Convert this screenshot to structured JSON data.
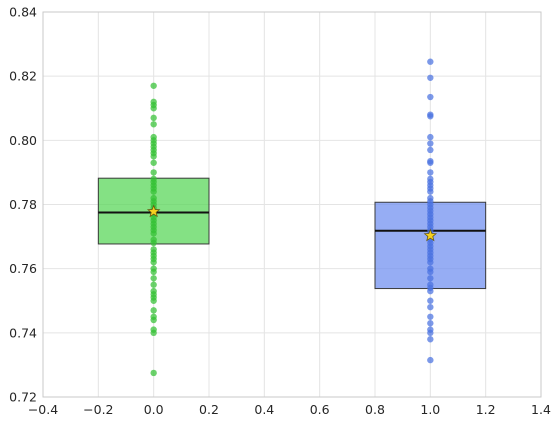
{
  "chart_data": {
    "type": "box",
    "xlim": [
      -0.4,
      1.4
    ],
    "ylim": [
      0.72,
      0.84
    ],
    "xticks": [
      -0.4,
      -0.2,
      0.0,
      0.2,
      0.4,
      0.6,
      0.8,
      1.0,
      1.2,
      1.4
    ],
    "yticks": [
      0.72,
      0.74,
      0.76,
      0.78,
      0.8,
      0.82,
      0.84
    ],
    "xtick_labels": [
      "−0.4",
      "−0.2",
      "0.0",
      "0.2",
      "0.4",
      "0.6",
      "0.8",
      "1.0",
      "1.2",
      "1.4"
    ],
    "ytick_labels": [
      "0.72",
      "0.74",
      "0.76",
      "0.78",
      "0.80",
      "0.82",
      "0.84"
    ],
    "grid": true,
    "series": [
      {
        "position": 0.0,
        "box_width": 0.4,
        "q1": 0.7677,
        "median": 0.7775,
        "q3": 0.7882,
        "mean": 0.7778,
        "box_color": "#55d655",
        "box_edge": "#3a3a3a",
        "point_color": "#33c033",
        "points": [
          0.817,
          0.812,
          0.811,
          0.81,
          0.807,
          0.805,
          0.801,
          0.8,
          0.799,
          0.798,
          0.797,
          0.796,
          0.795,
          0.793,
          0.79,
          0.788,
          0.787,
          0.786,
          0.785,
          0.784,
          0.782,
          0.781,
          0.78,
          0.779,
          0.778,
          0.7775,
          0.777,
          0.776,
          0.775,
          0.774,
          0.773,
          0.772,
          0.771,
          0.769,
          0.768,
          0.766,
          0.765,
          0.764,
          0.763,
          0.762,
          0.76,
          0.759,
          0.757,
          0.755,
          0.753,
          0.752,
          0.751,
          0.75,
          0.747,
          0.745,
          0.744,
          0.741,
          0.74,
          0.7275
        ]
      },
      {
        "position": 1.0,
        "box_width": 0.4,
        "q1": 0.7538,
        "median": 0.7718,
        "q3": 0.7807,
        "mean": 0.7703,
        "box_color": "#6e8ef0",
        "box_edge": "#3a3a3a",
        "point_color": "#4a72e0",
        "points": [
          0.8245,
          0.8195,
          0.8135,
          0.808,
          0.8075,
          0.801,
          0.799,
          0.797,
          0.7935,
          0.793,
          0.79,
          0.788,
          0.787,
          0.786,
          0.785,
          0.784,
          0.782,
          0.781,
          0.78,
          0.779,
          0.778,
          0.777,
          0.776,
          0.775,
          0.774,
          0.773,
          0.772,
          0.771,
          0.77,
          0.769,
          0.768,
          0.767,
          0.766,
          0.765,
          0.764,
          0.763,
          0.762,
          0.76,
          0.759,
          0.757,
          0.755,
          0.754,
          0.753,
          0.75,
          0.748,
          0.745,
          0.743,
          0.741,
          0.74,
          0.738,
          0.7315
        ]
      }
    ],
    "mean_marker": {
      "shape": "star",
      "fill": "#f5d020",
      "edge": "#6a5a10"
    }
  }
}
